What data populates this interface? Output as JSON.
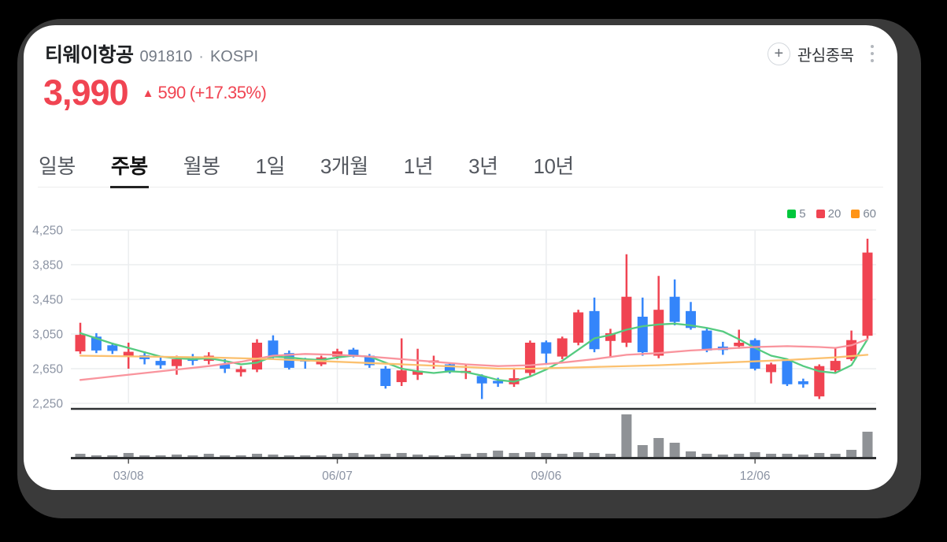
{
  "header": {
    "stock_name": "티웨이항공",
    "stock_code": "091810",
    "separator": "·",
    "market": "KOSPI",
    "price": "3,990",
    "change_arrow": "▲",
    "change_value": "590",
    "change_percent": "(+17.35%)",
    "favorite_label": "관심종목",
    "plus_icon": "+",
    "price_color": "#f04452"
  },
  "tabs": [
    {
      "label": "일봉",
      "active": false
    },
    {
      "label": "주봉",
      "active": true
    },
    {
      "label": "월봉",
      "active": false
    },
    {
      "label": "1일",
      "active": false
    },
    {
      "label": "3개월",
      "active": false
    },
    {
      "label": "1년",
      "active": false
    },
    {
      "label": "3년",
      "active": false
    },
    {
      "label": "10년",
      "active": false
    }
  ],
  "chart_data": {
    "type": "candlestick",
    "interval": "weekly",
    "y_axis": {
      "min": 2250,
      "max": 4250,
      "ticks": [
        {
          "label": "4,250",
          "value": 4250
        },
        {
          "label": "3,850",
          "value": 3850
        },
        {
          "label": "3,450",
          "value": 3450
        },
        {
          "label": "3,050",
          "value": 3050
        },
        {
          "label": "2,650",
          "value": 2650
        },
        {
          "label": "2,250",
          "value": 2250
        }
      ]
    },
    "x_axis": {
      "ticks": [
        {
          "label": "03/08",
          "index": 3
        },
        {
          "label": "06/07",
          "index": 16
        },
        {
          "label": "09/06",
          "index": 29
        },
        {
          "label": "12/06",
          "index": 42
        }
      ]
    },
    "legend": [
      {
        "name": "ma5",
        "label": "5",
        "color": "#00c73c"
      },
      {
        "name": "ma20",
        "label": "20",
        "color": "#f04452"
      },
      {
        "name": "ma60",
        "label": "60",
        "color": "#ff9417"
      }
    ],
    "colors": {
      "up": "#f04452",
      "down": "#3485fa",
      "volume": "#8f9296",
      "grid": "#ebedef",
      "axis_text": "#8b93a3",
      "baseline": "#2f3133",
      "ma5_line": "#55cb80",
      "ma20_line": "#f9949d",
      "ma60_line": "#fbc170"
    },
    "candles": {
      "columns": [
        "open",
        "high",
        "low",
        "close",
        "volume_rel"
      ],
      "rows": [
        [
          2850,
          3180,
          2820,
          3040,
          4
        ],
        [
          3020,
          3060,
          2830,
          2860,
          2
        ],
        [
          2920,
          2950,
          2820,
          2855,
          2
        ],
        [
          2800,
          2950,
          2650,
          2845,
          5
        ],
        [
          2805,
          2850,
          2700,
          2760,
          2
        ],
        [
          2740,
          2780,
          2650,
          2690,
          2
        ],
        [
          2680,
          2800,
          2580,
          2760,
          3
        ],
        [
          2765,
          2820,
          2690,
          2740,
          2
        ],
        [
          2740,
          2840,
          2700,
          2800,
          4
        ],
        [
          2700,
          2760,
          2600,
          2650,
          2
        ],
        [
          2610,
          2680,
          2560,
          2645,
          2
        ],
        [
          2640,
          2990,
          2610,
          2950,
          4
        ],
        [
          2975,
          3035,
          2770,
          2800,
          3
        ],
        [
          2830,
          2860,
          2640,
          2660,
          2
        ],
        [
          2755,
          2775,
          2650,
          2735,
          2
        ],
        [
          2700,
          2800,
          2680,
          2780,
          2
        ],
        [
          2790,
          2880,
          2760,
          2850,
          4
        ],
        [
          2870,
          2890,
          2780,
          2800,
          5
        ],
        [
          2800,
          2820,
          2660,
          2690,
          3
        ],
        [
          2650,
          2680,
          2420,
          2450,
          4
        ],
        [
          2495,
          3000,
          2450,
          2630,
          5
        ],
        [
          2580,
          2880,
          2520,
          2625,
          3
        ],
        [
          2720,
          2800,
          2650,
          2745,
          2
        ],
        [
          2700,
          2720,
          2595,
          2615,
          2
        ],
        [
          2600,
          2700,
          2530,
          2625,
          4
        ],
        [
          2565,
          2585,
          2300,
          2480,
          5
        ],
        [
          2510,
          2545,
          2440,
          2480,
          8
        ],
        [
          2470,
          2660,
          2440,
          2540,
          5
        ],
        [
          2600,
          2975,
          2570,
          2950,
          6
        ],
        [
          2955,
          2975,
          2705,
          2825,
          5
        ],
        [
          2790,
          3020,
          2760,
          3000,
          4
        ],
        [
          2950,
          3330,
          2920,
          3300,
          6
        ],
        [
          3315,
          3470,
          2840,
          2875,
          5
        ],
        [
          2970,
          3110,
          2790,
          3060,
          4
        ],
        [
          2950,
          3970,
          2900,
          3480,
          54
        ],
        [
          3250,
          3470,
          2800,
          2840,
          15
        ],
        [
          2800,
          3720,
          2770,
          3330,
          24
        ],
        [
          3480,
          3680,
          3150,
          3190,
          18
        ],
        [
          3315,
          3420,
          3100,
          3120,
          7
        ],
        [
          3090,
          3120,
          2840,
          2860,
          4
        ],
        [
          2905,
          2960,
          2810,
          2865,
          3
        ],
        [
          2910,
          3100,
          2880,
          2950,
          4
        ],
        [
          2980,
          3000,
          2630,
          2650,
          6
        ],
        [
          2610,
          2720,
          2480,
          2700,
          4
        ],
        [
          2740,
          2760,
          2450,
          2470,
          4
        ],
        [
          2505,
          2535,
          2430,
          2470,
          3
        ],
        [
          2330,
          2700,
          2300,
          2680,
          5
        ],
        [
          2630,
          2890,
          2600,
          2740,
          4
        ],
        [
          2760,
          3090,
          2740,
          2980,
          9
        ],
        [
          3030,
          4150,
          2990,
          3990,
          32
        ]
      ]
    },
    "ma_lines": [
      {
        "name": "ma5",
        "points": [
          [
            0,
            3060
          ],
          [
            1,
            3000
          ],
          [
            2,
            2940
          ],
          [
            3,
            2890
          ],
          [
            4,
            2840
          ],
          [
            5,
            2790
          ],
          [
            6,
            2770
          ],
          [
            7,
            2760
          ],
          [
            8,
            2770
          ],
          [
            9,
            2740
          ],
          [
            10,
            2700
          ],
          [
            11,
            2720
          ],
          [
            12,
            2790
          ],
          [
            13,
            2780
          ],
          [
            14,
            2760
          ],
          [
            15,
            2750
          ],
          [
            16,
            2780
          ],
          [
            17,
            2800
          ],
          [
            18,
            2790
          ],
          [
            19,
            2720
          ],
          [
            20,
            2650
          ],
          [
            21,
            2620
          ],
          [
            22,
            2600
          ],
          [
            23,
            2620
          ],
          [
            24,
            2610
          ],
          [
            25,
            2570
          ],
          [
            26,
            2520
          ],
          [
            27,
            2500
          ],
          [
            28,
            2560
          ],
          [
            29,
            2640
          ],
          [
            30,
            2740
          ],
          [
            31,
            2870
          ],
          [
            32,
            3000
          ],
          [
            33,
            3040
          ],
          [
            34,
            3100
          ],
          [
            35,
            3140
          ],
          [
            36,
            3160
          ],
          [
            37,
            3170
          ],
          [
            38,
            3150
          ],
          [
            39,
            3120
          ],
          [
            40,
            3080
          ],
          [
            41,
            2990
          ],
          [
            42,
            2890
          ],
          [
            43,
            2800
          ],
          [
            44,
            2760
          ],
          [
            45,
            2680
          ],
          [
            46,
            2620
          ],
          [
            47,
            2600
          ],
          [
            48,
            2690
          ],
          [
            49,
            2990
          ]
        ]
      },
      {
        "name": "ma20",
        "points": [
          [
            0,
            2520
          ],
          [
            2,
            2560
          ],
          [
            4,
            2600
          ],
          [
            6,
            2640
          ],
          [
            8,
            2680
          ],
          [
            10,
            2730
          ],
          [
            12,
            2800
          ],
          [
            14,
            2820
          ],
          [
            16,
            2810
          ],
          [
            18,
            2790
          ],
          [
            20,
            2760
          ],
          [
            22,
            2730
          ],
          [
            24,
            2700
          ],
          [
            26,
            2680
          ],
          [
            28,
            2690
          ],
          [
            30,
            2720
          ],
          [
            32,
            2760
          ],
          [
            34,
            2810
          ],
          [
            36,
            2830
          ],
          [
            38,
            2860
          ],
          [
            40,
            2880
          ],
          [
            42,
            2900
          ],
          [
            44,
            2910
          ],
          [
            46,
            2900
          ],
          [
            47,
            2890
          ],
          [
            48,
            2920
          ],
          [
            49,
            2990
          ]
        ]
      },
      {
        "name": "ma60",
        "points": [
          [
            0,
            2800
          ],
          [
            4,
            2790
          ],
          [
            8,
            2780
          ],
          [
            12,
            2760
          ],
          [
            16,
            2730
          ],
          [
            20,
            2700
          ],
          [
            24,
            2670
          ],
          [
            26,
            2650
          ],
          [
            28,
            2650
          ],
          [
            32,
            2670
          ],
          [
            36,
            2690
          ],
          [
            40,
            2720
          ],
          [
            44,
            2750
          ],
          [
            47,
            2780
          ],
          [
            49,
            2810
          ]
        ]
      }
    ]
  }
}
